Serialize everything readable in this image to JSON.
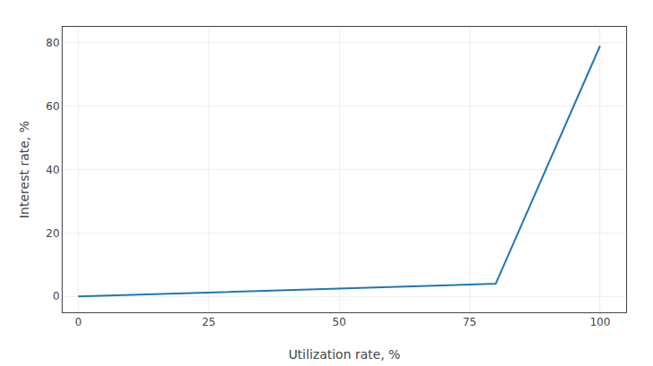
{
  "chart_data": {
    "type": "line",
    "x": [
      0,
      80,
      100
    ],
    "values": [
      0,
      4,
      79
    ],
    "xlabel": "Utilization rate, %",
    "ylabel": "Interest rate, %",
    "xlim": [
      -3,
      105
    ],
    "ylim": [
      -5,
      85
    ],
    "xticks": [
      0,
      25,
      50,
      75,
      100
    ],
    "yticks": [
      0,
      20,
      40,
      60,
      80
    ],
    "grid": true
  }
}
